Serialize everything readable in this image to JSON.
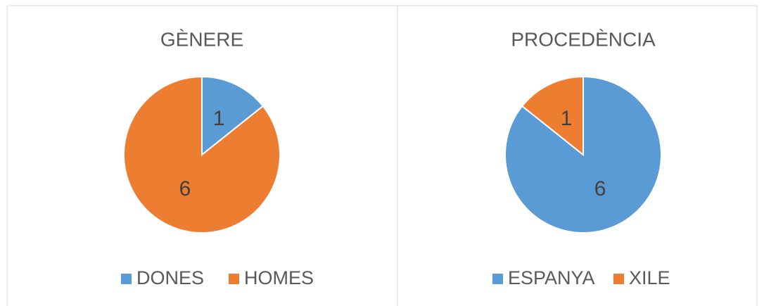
{
  "chart_data": [
    {
      "type": "pie",
      "title": "GÈNERE",
      "categories": [
        "DONES",
        "HOMES"
      ],
      "values": [
        1,
        6
      ],
      "colors": [
        "#5b9bd5",
        "#ed7d31"
      ],
      "legend": "bottom"
    },
    {
      "type": "pie",
      "title": "PROCEDÈNCIA",
      "categories": [
        "ESPANYA",
        "XILE"
      ],
      "values": [
        6,
        1
      ],
      "colors": [
        "#5b9bd5",
        "#ed7d31"
      ],
      "legend": "bottom"
    }
  ]
}
